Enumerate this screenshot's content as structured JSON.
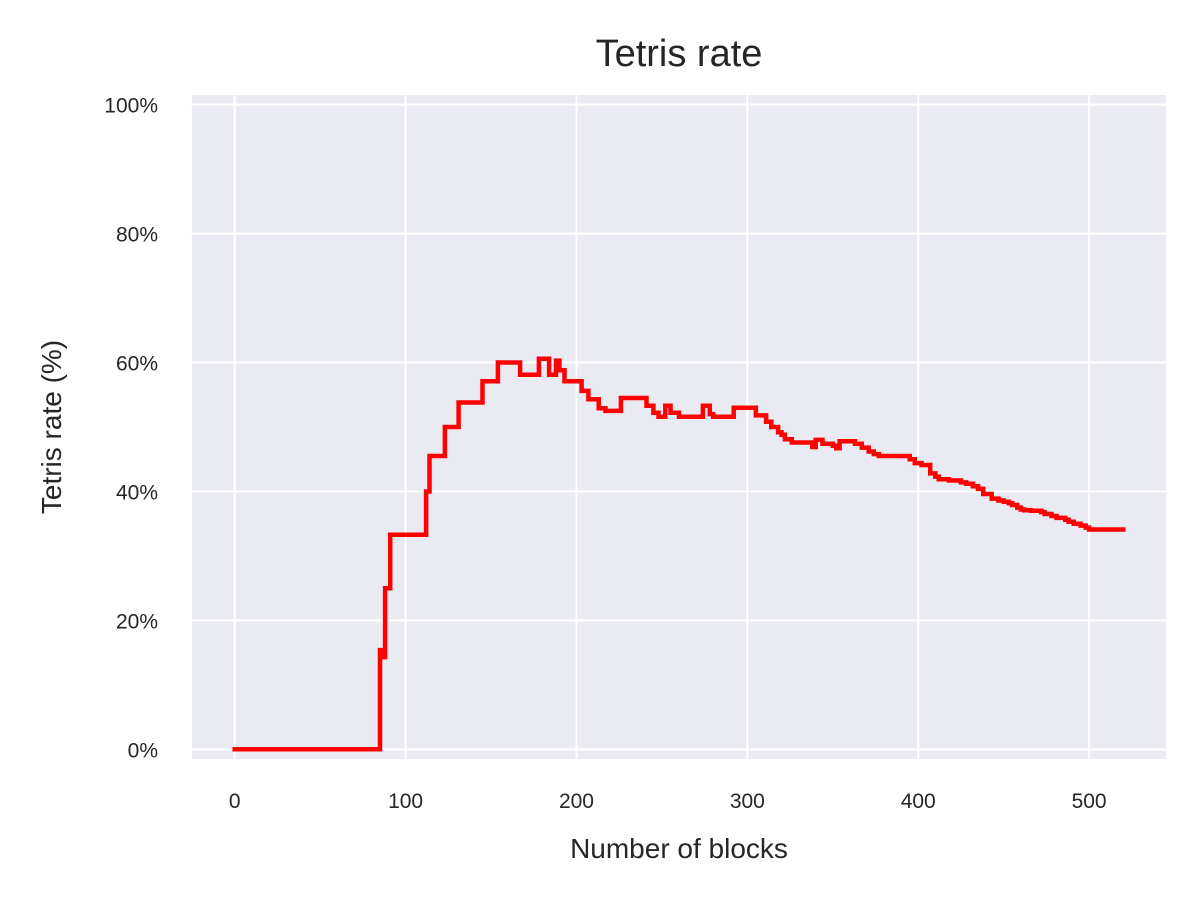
{
  "chart_data": {
    "type": "line",
    "title": "Tetris rate",
    "xlabel": "Number of blocks",
    "ylabel": "Tetris rate (%)",
    "xlim": [
      -25,
      545
    ],
    "ylim": [
      -1.5,
      101.5
    ],
    "x_ticks": [
      0,
      100,
      200,
      300,
      400,
      500
    ],
    "x_tick_labels": [
      "0",
      "100",
      "200",
      "300",
      "400",
      "500"
    ],
    "y_ticks": [
      0,
      20,
      40,
      60,
      80,
      100
    ],
    "y_tick_labels": [
      "0%",
      "20%",
      "40%",
      "60%",
      "80%",
      "100%"
    ],
    "grid": true,
    "legend": "none",
    "colors": {
      "background": "#eaeaf2",
      "grid": "#ffffff",
      "line": "#ff0000",
      "text": "#262626"
    },
    "series": [
      {
        "color": "#ff0000",
        "x": [
          0,
          84,
          85,
          85,
          86,
          86,
          88,
          88,
          89,
          89,
          91,
          91,
          111,
          111,
          112,
          112,
          114,
          114,
          121,
          121,
          123,
          123,
          131,
          131,
          145,
          145,
          154,
          154,
          167,
          167,
          178,
          178,
          184,
          184,
          186,
          186,
          188,
          188,
          190,
          190,
          193,
          193,
          203,
          203,
          207,
          207,
          213,
          213,
          217,
          217,
          226,
          226,
          241,
          241,
          245,
          245,
          248,
          248,
          252,
          252,
          255,
          255,
          260,
          260,
          274,
          274,
          278,
          278,
          280,
          280,
          285,
          285,
          292,
          292,
          305,
          305,
          311,
          311,
          314,
          314,
          318,
          318,
          320,
          320,
          322,
          322,
          326,
          326,
          330,
          330,
          338,
          338,
          340,
          340,
          341,
          341,
          344,
          344,
          350,
          350,
          352,
          352,
          354,
          354,
          356,
          356,
          363,
          363,
          367,
          367,
          371,
          371,
          374,
          374,
          377,
          377,
          385,
          385,
          395,
          395,
          398,
          398,
          402,
          402,
          407,
          407,
          410,
          410,
          412,
          412,
          418,
          418,
          425,
          425,
          428,
          428,
          432,
          432,
          435,
          435,
          438,
          438,
          443,
          443,
          447,
          447,
          450,
          450,
          453,
          453,
          455,
          455,
          458,
          458,
          460,
          460,
          462,
          462,
          466,
          466,
          472,
          472,
          474,
          474,
          478,
          478,
          481,
          481,
          486,
          486,
          488,
          488,
          491,
          491,
          495,
          495,
          498,
          498,
          500,
          500,
          520
        ],
        "y": [
          0,
          0,
          0,
          15.4,
          15.4,
          14.3,
          14.3,
          25,
          25,
          25,
          25,
          33.3,
          33.3,
          33.3,
          33.3,
          40,
          40,
          45.5,
          45.5,
          45.5,
          45.5,
          50,
          50,
          53.8,
          53.8,
          57.1,
          57.1,
          60,
          60,
          58.1,
          58.1,
          60.6,
          60.6,
          58.1,
          58.1,
          58.1,
          58.1,
          60.3,
          60.3,
          58.8,
          58.8,
          57.1,
          57.1,
          55.6,
          55.6,
          54.3,
          54.3,
          52.9,
          52.9,
          52.5,
          52.5,
          54.5,
          54.5,
          53.3,
          53.3,
          52.2,
          52.2,
          51.6,
          51.6,
          53.3,
          53.3,
          52.2,
          52.2,
          51.6,
          51.6,
          53.3,
          53.3,
          52,
          52,
          51.6,
          51.6,
          51.6,
          51.6,
          53,
          53,
          51.8,
          51.8,
          50.8,
          50.8,
          50,
          50,
          49.2,
          49.2,
          48.8,
          48.8,
          48.1,
          48.1,
          47.6,
          47.6,
          47.6,
          47.6,
          46.9,
          46.9,
          48,
          48,
          48,
          48,
          47.4,
          47.4,
          47.1,
          47.1,
          46.7,
          46.7,
          47.8,
          47.8,
          47.8,
          47.8,
          47.4,
          47.4,
          46.8,
          46.8,
          46.2,
          46.2,
          45.8,
          45.8,
          45.5,
          45.5,
          45.5,
          45.5,
          45,
          45,
          44.4,
          44.4,
          44.1,
          44.1,
          42.8,
          42.8,
          42.3,
          42.3,
          41.9,
          41.9,
          41.7,
          41.7,
          41.4,
          41.4,
          41.2,
          41.2,
          40.8,
          40.8,
          40.4,
          40.4,
          39.6,
          39.6,
          38.9,
          38.9,
          38.6,
          38.6,
          38.4,
          38.4,
          38.2,
          38.2,
          37.9,
          37.9,
          37.5,
          37.5,
          37.2,
          37.2,
          37.1,
          37.1,
          37,
          37,
          36.8,
          36.8,
          36.5,
          36.5,
          36.2,
          36.2,
          35.9,
          35.9,
          35.6,
          35.6,
          35.3,
          35.3,
          35,
          35,
          34.7,
          34.7,
          34.4,
          34.4,
          34.1,
          34.1
        ]
      }
    ]
  }
}
